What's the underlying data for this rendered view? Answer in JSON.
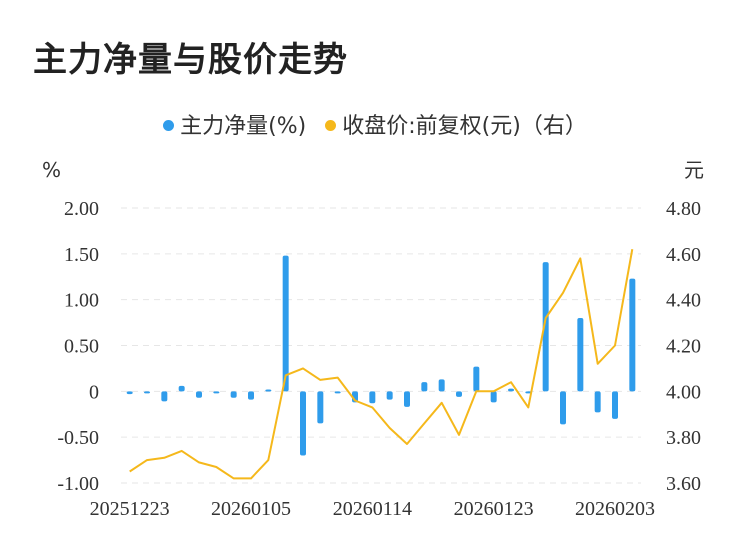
{
  "title": "主力净量与股价走势",
  "chart_data": {
    "type": "bar+line",
    "legend": [
      {
        "label": "主力净量(%)",
        "color": "#2f9ceb"
      },
      {
        "label": "收盘价:前复权(元)（右）",
        "color": "#f5b81b"
      }
    ],
    "y_left_unit": "%",
    "y_right_unit": "元",
    "y_left_ticks": [
      "2.00",
      "1.50",
      "1.00",
      "0.50",
      "0",
      "-0.50",
      "-1.00"
    ],
    "y_right_ticks": [
      "4.80",
      "4.60",
      "4.40",
      "4.20",
      "4.00",
      "3.80",
      "3.60"
    ],
    "y_left_range": [
      -1.0,
      2.0
    ],
    "y_right_range": [
      3.6,
      4.8
    ],
    "x_ticks": [
      "20251223",
      "20260105",
      "20260114",
      "20260123",
      "20260203"
    ],
    "x_tick_indices": [
      0,
      7,
      14,
      21,
      28
    ],
    "grid": true,
    "bars": [
      -0.03,
      -0.01,
      -0.11,
      0.06,
      -0.07,
      -0.01,
      -0.07,
      -0.09,
      0.02,
      1.48,
      -0.7,
      -0.35,
      0.0,
      -0.12,
      -0.13,
      -0.09,
      -0.17,
      0.1,
      0.13,
      -0.06,
      0.27,
      -0.12,
      0.03,
      0.0,
      1.41,
      -0.36,
      0.8,
      -0.23,
      -0.3,
      1.23
    ],
    "prices": [
      3.65,
      3.7,
      3.71,
      3.74,
      3.69,
      3.67,
      3.62,
      3.62,
      3.7,
      4.07,
      4.1,
      4.05,
      4.06,
      3.96,
      3.93,
      3.84,
      3.77,
      3.86,
      3.95,
      3.81,
      4.0,
      4.0,
      4.04,
      3.93,
      4.32,
      4.43,
      4.58,
      4.12,
      4.2,
      4.62
    ]
  }
}
